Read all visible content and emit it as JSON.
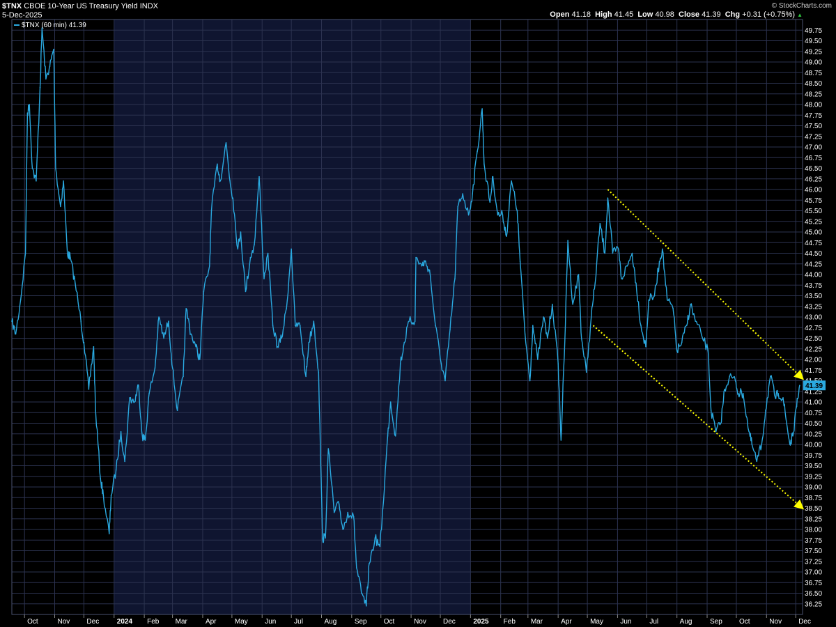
{
  "header": {
    "symbol": "$TNX",
    "name": "CBOE 10-Year US Treasury Yield INDX",
    "date": "5-Dec-2025",
    "source": "© StockCharts.com",
    "open_label": "Open",
    "open": "41.18",
    "high_label": "High",
    "high": "41.45",
    "low_label": "Low",
    "low": "40.98",
    "close_label": "Close",
    "close": "41.39",
    "chg_label": "Chg",
    "chg": "+0.31 (+0.75%)",
    "legend": "$TNX (60 min) 41.39"
  },
  "colors": {
    "line": "#2aa9e0",
    "trend": "#ffff00",
    "shade": "#0f1530",
    "grid": "#2c3350",
    "bg": "#000000"
  },
  "chart_data": {
    "type": "line",
    "ylim": [
      36.0,
      50.0
    ],
    "yticks": [
      "36.25",
      "36.50",
      "36.75",
      "37.00",
      "37.25",
      "37.50",
      "37.75",
      "38.00",
      "38.25",
      "38.50",
      "38.75",
      "39.00",
      "39.25",
      "39.50",
      "39.75",
      "40.00",
      "40.25",
      "40.50",
      "40.75",
      "41.00",
      "41.25",
      "41.50",
      "41.75",
      "42.00",
      "42.25",
      "42.50",
      "42.75",
      "43.00",
      "43.25",
      "43.50",
      "43.75",
      "44.00",
      "44.25",
      "44.50",
      "44.75",
      "45.00",
      "45.25",
      "45.50",
      "45.75",
      "46.00",
      "46.25",
      "46.50",
      "46.75",
      "47.00",
      "47.25",
      "47.50",
      "47.75",
      "48.00",
      "48.25",
      "48.50",
      "48.75",
      "49.00",
      "49.25",
      "49.50",
      "49.75"
    ],
    "xlim": [
      "2023-09-18",
      "2025-12-08"
    ],
    "xticks": [
      {
        "label": "Oct",
        "date": "2023-10-01"
      },
      {
        "label": "Nov",
        "date": "2023-11-01"
      },
      {
        "label": "Dec",
        "date": "2023-12-01"
      },
      {
        "label": "2024",
        "date": "2024-01-01",
        "bold": true
      },
      {
        "label": "Feb",
        "date": "2024-02-01"
      },
      {
        "label": "Mar",
        "date": "2024-03-01"
      },
      {
        "label": "Apr",
        "date": "2024-04-01"
      },
      {
        "label": "May",
        "date": "2024-05-01"
      },
      {
        "label": "Jun",
        "date": "2024-06-01"
      },
      {
        "label": "Jul",
        "date": "2024-07-01"
      },
      {
        "label": "Aug",
        "date": "2024-08-01"
      },
      {
        "label": "Sep",
        "date": "2024-09-01"
      },
      {
        "label": "Oct",
        "date": "2024-10-01"
      },
      {
        "label": "Nov",
        "date": "2024-11-01"
      },
      {
        "label": "Dec",
        "date": "2024-12-01"
      },
      {
        "label": "2025",
        "date": "2025-01-01",
        "bold": true
      },
      {
        "label": "Feb",
        "date": "2025-02-01"
      },
      {
        "label": "Mar",
        "date": "2025-03-01"
      },
      {
        "label": "Apr",
        "date": "2025-04-01"
      },
      {
        "label": "May",
        "date": "2025-05-01"
      },
      {
        "label": "Jun",
        "date": "2025-06-01"
      },
      {
        "label": "Jul",
        "date": "2025-07-01"
      },
      {
        "label": "Aug",
        "date": "2025-08-01"
      },
      {
        "label": "Sep",
        "date": "2025-09-01"
      },
      {
        "label": "Oct",
        "date": "2025-10-01"
      },
      {
        "label": "Nov",
        "date": "2025-11-01"
      },
      {
        "label": "Dec",
        "date": "2025-12-01"
      }
    ],
    "shaded_period": [
      "2024-01-01",
      "2025-01-01"
    ],
    "last_value_label": "41.39",
    "series": [
      {
        "values": [
          [
            "2023-09-18",
            42.9
          ],
          [
            "2023-09-22",
            42.6
          ],
          [
            "2023-09-27",
            43.4
          ],
          [
            "2023-10-02",
            44.5
          ],
          [
            "2023-10-04",
            47.8
          ],
          [
            "2023-10-06",
            48.0
          ],
          [
            "2023-10-09",
            46.5
          ],
          [
            "2023-10-13",
            46.2
          ],
          [
            "2023-10-17",
            48.4
          ],
          [
            "2023-10-19",
            49.8
          ],
          [
            "2023-10-23",
            48.6
          ],
          [
            "2023-10-27",
            48.9
          ],
          [
            "2023-10-31",
            49.3
          ],
          [
            "2023-11-02",
            46.5
          ],
          [
            "2023-11-07",
            45.6
          ],
          [
            "2023-11-10",
            46.2
          ],
          [
            "2023-11-14",
            44.5
          ],
          [
            "2023-11-17",
            44.4
          ],
          [
            "2023-11-22",
            43.8
          ],
          [
            "2023-11-28",
            42.9
          ],
          [
            "2023-12-01",
            42.4
          ],
          [
            "2023-12-06",
            41.3
          ],
          [
            "2023-12-11",
            42.3
          ],
          [
            "2023-12-13",
            40.8
          ],
          [
            "2023-12-18",
            39.2
          ],
          [
            "2023-12-21",
            38.8
          ],
          [
            "2023-12-27",
            37.9
          ],
          [
            "2023-12-29",
            38.8
          ],
          [
            "2024-01-03",
            39.4
          ],
          [
            "2024-01-08",
            40.3
          ],
          [
            "2024-01-12",
            39.6
          ],
          [
            "2024-01-17",
            41.1
          ],
          [
            "2024-01-22",
            41.0
          ],
          [
            "2024-01-26",
            41.4
          ],
          [
            "2024-01-30",
            40.2
          ],
          [
            "2024-02-02",
            40.1
          ],
          [
            "2024-02-06",
            41.2
          ],
          [
            "2024-02-12",
            41.8
          ],
          [
            "2024-02-16",
            43.0
          ],
          [
            "2024-02-21",
            42.5
          ],
          [
            "2024-02-26",
            42.9
          ],
          [
            "2024-03-01",
            41.8
          ],
          [
            "2024-03-06",
            40.8
          ],
          [
            "2024-03-12",
            41.6
          ],
          [
            "2024-03-15",
            43.2
          ],
          [
            "2024-03-20",
            42.6
          ],
          [
            "2024-03-25",
            42.3
          ],
          [
            "2024-03-29",
            42.0
          ],
          [
            "2024-04-02",
            43.6
          ],
          [
            "2024-04-08",
            44.2
          ],
          [
            "2024-04-10",
            45.5
          ],
          [
            "2024-04-16",
            46.6
          ],
          [
            "2024-04-19",
            46.2
          ],
          [
            "2024-04-25",
            47.1
          ],
          [
            "2024-04-29",
            46.2
          ],
          [
            "2024-05-02",
            45.8
          ],
          [
            "2024-05-07",
            44.6
          ],
          [
            "2024-05-10",
            45.0
          ],
          [
            "2024-05-15",
            43.6
          ],
          [
            "2024-05-20",
            44.4
          ],
          [
            "2024-05-24",
            44.7
          ],
          [
            "2024-05-29",
            46.3
          ],
          [
            "2024-06-03",
            43.9
          ],
          [
            "2024-06-07",
            44.5
          ],
          [
            "2024-06-12",
            42.8
          ],
          [
            "2024-06-17",
            42.3
          ],
          [
            "2024-06-21",
            42.5
          ],
          [
            "2024-06-26",
            43.2
          ],
          [
            "2024-07-01",
            44.6
          ],
          [
            "2024-07-05",
            42.8
          ],
          [
            "2024-07-10",
            42.8
          ],
          [
            "2024-07-16",
            41.6
          ],
          [
            "2024-07-19",
            42.4
          ],
          [
            "2024-07-24",
            42.9
          ],
          [
            "2024-07-29",
            41.7
          ],
          [
            "2024-08-02",
            37.8
          ],
          [
            "2024-08-05",
            37.8
          ],
          [
            "2024-08-08",
            39.9
          ],
          [
            "2024-08-14",
            38.4
          ],
          [
            "2024-08-19",
            38.6
          ],
          [
            "2024-08-23",
            38.0
          ],
          [
            "2024-08-28",
            38.4
          ],
          [
            "2024-09-03",
            38.3
          ],
          [
            "2024-09-06",
            37.1
          ],
          [
            "2024-09-11",
            36.5
          ],
          [
            "2024-09-16",
            36.2
          ],
          [
            "2024-09-19",
            37.2
          ],
          [
            "2024-09-25",
            37.8
          ],
          [
            "2024-09-30",
            37.6
          ],
          [
            "2024-10-03",
            38.5
          ],
          [
            "2024-10-08",
            40.2
          ],
          [
            "2024-10-11",
            41.0
          ],
          [
            "2024-10-16",
            40.2
          ],
          [
            "2024-10-21",
            41.9
          ],
          [
            "2024-10-25",
            42.4
          ],
          [
            "2024-10-30",
            42.9
          ],
          [
            "2024-11-05",
            42.9
          ],
          [
            "2024-11-06",
            44.4
          ],
          [
            "2024-11-12",
            44.2
          ],
          [
            "2024-11-15",
            44.3
          ],
          [
            "2024-11-20",
            44.1
          ],
          [
            "2024-11-26",
            42.8
          ],
          [
            "2024-12-02",
            41.9
          ],
          [
            "2024-12-06",
            41.5
          ],
          [
            "2024-12-11",
            42.7
          ],
          [
            "2024-12-16",
            43.9
          ],
          [
            "2024-12-19",
            45.6
          ],
          [
            "2024-12-24",
            45.9
          ],
          [
            "2024-12-30",
            45.4
          ],
          [
            "2025-01-03",
            45.9
          ],
          [
            "2025-01-08",
            46.9
          ],
          [
            "2025-01-13",
            47.9
          ],
          [
            "2025-01-15",
            46.6
          ],
          [
            "2025-01-21",
            45.7
          ],
          [
            "2025-01-24",
            46.3
          ],
          [
            "2025-01-29",
            45.4
          ],
          [
            "2025-02-03",
            45.4
          ],
          [
            "2025-02-07",
            44.9
          ],
          [
            "2025-02-12",
            46.2
          ],
          [
            "2025-02-18",
            45.5
          ],
          [
            "2025-02-21",
            44.3
          ],
          [
            "2025-02-26",
            42.6
          ],
          [
            "2025-03-03",
            41.5
          ],
          [
            "2025-03-06",
            42.8
          ],
          [
            "2025-03-11",
            42.0
          ],
          [
            "2025-03-17",
            43.0
          ],
          [
            "2025-03-21",
            42.5
          ],
          [
            "2025-03-26",
            43.3
          ],
          [
            "2025-04-01",
            41.9
          ],
          [
            "2025-04-04",
            40.1
          ],
          [
            "2025-04-08",
            42.5
          ],
          [
            "2025-04-11",
            44.8
          ],
          [
            "2025-04-16",
            43.3
          ],
          [
            "2025-04-22",
            44.0
          ],
          [
            "2025-04-25",
            42.5
          ],
          [
            "2025-04-30",
            41.7
          ],
          [
            "2025-05-05",
            43.0
          ],
          [
            "2025-05-09",
            43.8
          ],
          [
            "2025-05-14",
            45.2
          ],
          [
            "2025-05-19",
            44.5
          ],
          [
            "2025-05-22",
            45.8
          ],
          [
            "2025-05-27",
            44.5
          ],
          [
            "2025-06-02",
            44.6
          ],
          [
            "2025-06-05",
            43.9
          ],
          [
            "2025-06-11",
            44.2
          ],
          [
            "2025-06-16",
            44.5
          ],
          [
            "2025-06-20",
            43.8
          ],
          [
            "2025-06-25",
            42.8
          ],
          [
            "2025-06-30",
            42.3
          ],
          [
            "2025-07-03",
            43.4
          ],
          [
            "2025-07-09",
            43.5
          ],
          [
            "2025-07-14",
            44.3
          ],
          [
            "2025-07-17",
            44.6
          ],
          [
            "2025-07-22",
            43.4
          ],
          [
            "2025-07-28",
            43.2
          ],
          [
            "2025-08-01",
            42.2
          ],
          [
            "2025-08-06",
            42.4
          ],
          [
            "2025-08-11",
            42.8
          ],
          [
            "2025-08-15",
            43.3
          ],
          [
            "2025-08-20",
            42.9
          ],
          [
            "2025-08-26",
            42.6
          ],
          [
            "2025-09-02",
            42.2
          ],
          [
            "2025-09-05",
            40.8
          ],
          [
            "2025-09-10",
            40.3
          ],
          [
            "2025-09-15",
            40.5
          ],
          [
            "2025-09-19",
            41.3
          ],
          [
            "2025-09-24",
            41.6
          ],
          [
            "2025-09-30",
            41.5
          ],
          [
            "2025-10-03",
            41.2
          ],
          [
            "2025-10-08",
            41.2
          ],
          [
            "2025-10-14",
            40.3
          ],
          [
            "2025-10-17",
            40.0
          ],
          [
            "2025-10-22",
            39.6
          ],
          [
            "2025-10-27",
            40.0
          ],
          [
            "2025-10-31",
            40.8
          ],
          [
            "2025-11-05",
            41.6
          ],
          [
            "2025-11-10",
            41.1
          ],
          [
            "2025-11-13",
            41.2
          ],
          [
            "2025-11-18",
            41.1
          ],
          [
            "2025-11-21",
            40.6
          ],
          [
            "2025-11-25",
            40.0
          ],
          [
            "2025-11-28",
            40.2
          ],
          [
            "2025-12-02",
            40.9
          ],
          [
            "2025-12-05",
            41.39
          ]
        ]
      }
    ],
    "annotations": [
      {
        "type": "trend_line",
        "from": [
          "2025-05-22",
          46.0
        ],
        "to": [
          "2025-12-08",
          41.55
        ]
      },
      {
        "type": "trend_line",
        "from": [
          "2025-05-07",
          42.8
        ],
        "to": [
          "2025-12-08",
          38.5
        ]
      }
    ]
  }
}
